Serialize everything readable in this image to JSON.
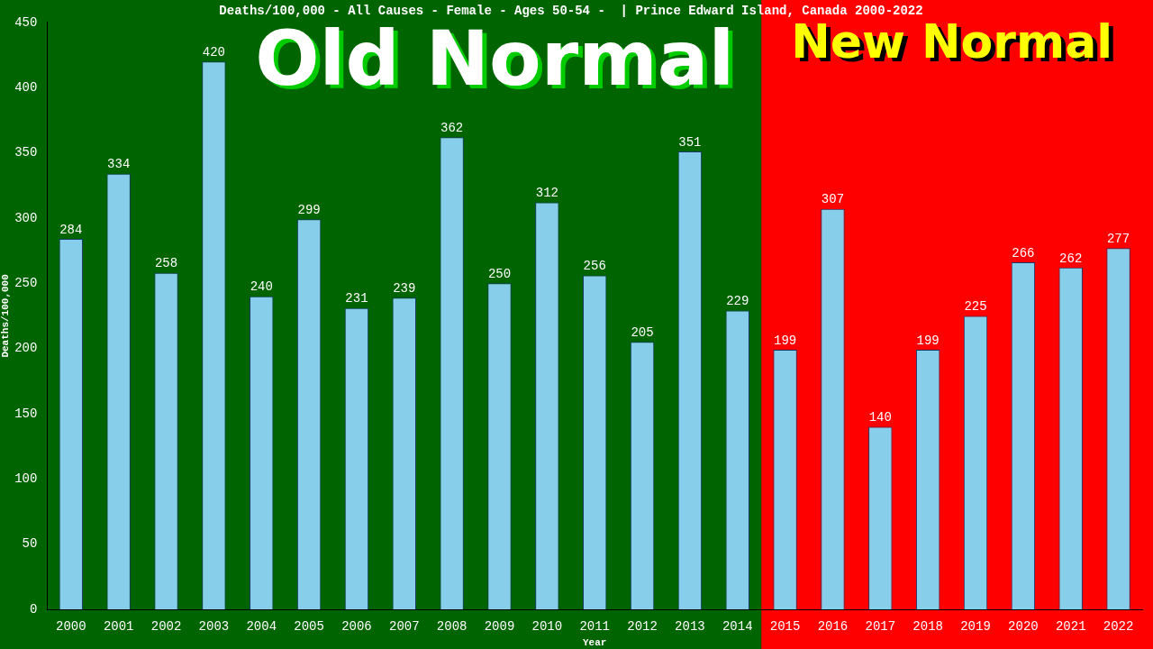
{
  "chart_data": {
    "type": "bar",
    "title": "Deaths/100,000 - All Causes - Female - Ages 50-54 -  | Prince Edward Island, Canada 2000-2022",
    "xlabel": "Year",
    "ylabel": "Deaths/100,000",
    "categories": [
      "2000",
      "2001",
      "2002",
      "2003",
      "2004",
      "2005",
      "2006",
      "2007",
      "2008",
      "2009",
      "2010",
      "2011",
      "2012",
      "2013",
      "2014",
      "2015",
      "2016",
      "2017",
      "2018",
      "2019",
      "2020",
      "2021",
      "2022"
    ],
    "values": [
      284,
      334,
      258,
      420,
      240,
      299,
      231,
      239,
      362,
      250,
      312,
      256,
      205,
      351,
      229,
      199,
      307,
      140,
      199,
      225,
      266,
      262,
      277
    ],
    "color": "#87ceeb",
    "ylim": [
      0,
      450
    ],
    "yticks": [
      0,
      50,
      100,
      150,
      200,
      250,
      300,
      350,
      400,
      450
    ],
    "data_labels": true,
    "bands": [
      {
        "axis": "x",
        "from": "2000",
        "to": "2014",
        "label": "Old Normal",
        "color": "#006400"
      },
      {
        "axis": "x",
        "from": "2015",
        "to": "2022",
        "label": "New Normal",
        "color": "#ff0000"
      }
    ]
  }
}
